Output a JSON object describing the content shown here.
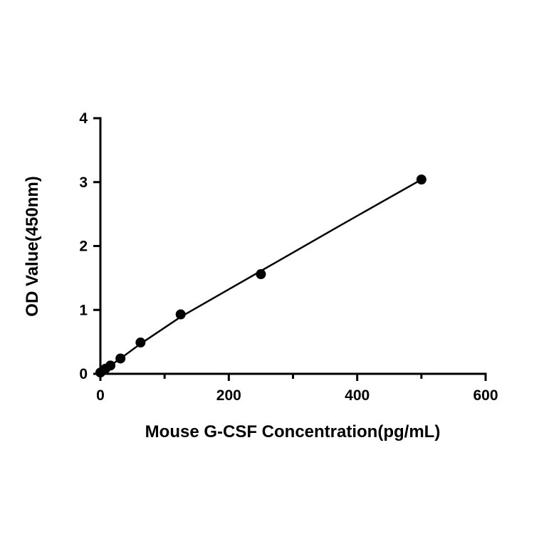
{
  "chart_data": {
    "type": "scatter",
    "title": "",
    "xlabel": "Mouse G-CSF Concentration(pg/mL)",
    "ylabel": "OD Value(450nm)",
    "xlim": [
      0,
      600
    ],
    "ylim": [
      0,
      4
    ],
    "x_ticks": [
      0,
      200,
      400,
      600
    ],
    "x_tick_labels": [
      "0",
      "200",
      "400",
      "600"
    ],
    "x_minor_ticks": [
      100,
      300,
      500
    ],
    "y_ticks": [
      0,
      1,
      2,
      3,
      4
    ],
    "y_tick_labels": [
      "0",
      "1",
      "2",
      "3",
      "4"
    ],
    "grid": false,
    "legend": "none",
    "series": [
      {
        "x": [
          0,
          7.8,
          15.6,
          31.25,
          62.5,
          125,
          250,
          500
        ],
        "y": [
          0.02,
          0.08,
          0.13,
          0.24,
          0.49,
          0.93,
          1.56,
          3.04
        ]
      }
    ],
    "fit_curve": {
      "x": [
        0,
        7.8,
        15.6,
        31.25,
        62.5,
        125,
        250,
        375,
        500
      ],
      "y": [
        0.03,
        0.08,
        0.13,
        0.24,
        0.47,
        0.89,
        1.61,
        2.33,
        3.04
      ]
    },
    "colors": {
      "marker": "#000000",
      "line": "#000000"
    }
  }
}
